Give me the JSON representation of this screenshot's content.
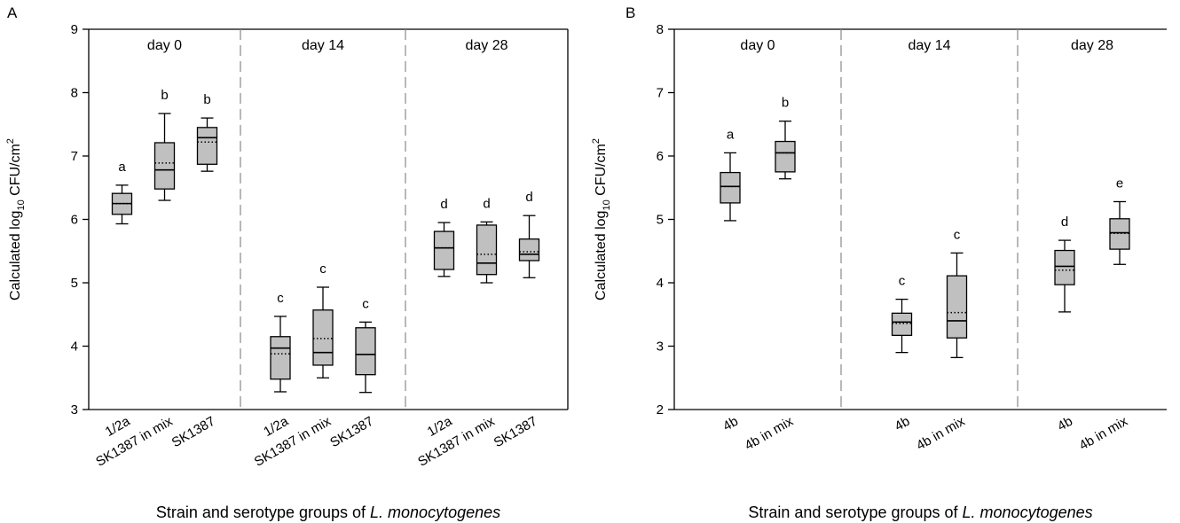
{
  "chart_data": [
    {
      "type": "box",
      "label": "A",
      "ylabel": [
        "Calculated log",
        "10",
        " CFU/cm",
        "2"
      ],
      "xlabel": [
        "Strain and serotype groups of ",
        "L. monocytogenes"
      ],
      "ylim": [
        3,
        9
      ],
      "yticks": [
        3,
        4,
        5,
        6,
        7,
        8,
        9
      ],
      "color": "#c0c0c0",
      "groups": [
        {
          "name": "day 0",
          "categories": [
            "1/2a",
            "SK1387 in mix",
            "SK1387"
          ],
          "letters": [
            "a",
            "b",
            "b"
          ],
          "boxes": [
            {
              "min": 5.93,
              "q1": 6.08,
              "median": 6.25,
              "q3": 6.41,
              "max": 6.54,
              "mean": 6.25
            },
            {
              "min": 6.3,
              "q1": 6.48,
              "median": 6.78,
              "q3": 7.21,
              "max": 7.67,
              "mean": 6.89
            },
            {
              "min": 6.76,
              "q1": 6.87,
              "median": 7.29,
              "q3": 7.45,
              "max": 7.6,
              "mean": 7.22
            }
          ]
        },
        {
          "name": "day 14",
          "categories": [
            "1/2a",
            "SK1387 in mix",
            "SK1387"
          ],
          "letters": [
            "c",
            "c",
            "c"
          ],
          "boxes": [
            {
              "min": 3.28,
              "q1": 3.48,
              "median": 3.97,
              "q3": 4.15,
              "max": 4.47,
              "mean": 3.88
            },
            {
              "min": 3.5,
              "q1": 3.7,
              "median": 3.9,
              "q3": 4.57,
              "max": 4.93,
              "mean": 4.12
            },
            {
              "min": 3.27,
              "q1": 3.55,
              "median": 3.87,
              "q3": 4.29,
              "max": 4.38,
              "mean": 3.87
            }
          ]
        },
        {
          "name": "day 28",
          "categories": [
            "1/2a",
            "SK1387 in mix",
            "SK1387"
          ],
          "letters": [
            "d",
            "d",
            "d"
          ],
          "boxes": [
            {
              "min": 5.1,
              "q1": 5.21,
              "median": 5.55,
              "q3": 5.81,
              "max": 5.95,
              "mean": 5.55
            },
            {
              "min": 5.0,
              "q1": 5.13,
              "median": 5.31,
              "q3": 5.91,
              "max": 5.96,
              "mean": 5.45
            },
            {
              "min": 5.08,
              "q1": 5.35,
              "median": 5.45,
              "q3": 5.69,
              "max": 6.06,
              "mean": 5.49
            }
          ]
        }
      ]
    },
    {
      "type": "box",
      "label": "B",
      "ylabel": [
        "Calculated log",
        "10",
        " CFU/cm",
        "2"
      ],
      "xlabel": [
        "Strain and serotype groups of ",
        "L. monocytogenes"
      ],
      "ylim": [
        2,
        8
      ],
      "yticks": [
        2,
        3,
        4,
        5,
        6,
        7,
        8
      ],
      "color": "#c0c0c0",
      "groups": [
        {
          "name": "day 0",
          "categories": [
            "4b",
            "4b in mix"
          ],
          "letters": [
            "a",
            "b"
          ],
          "boxes": [
            {
              "min": 4.98,
              "q1": 5.26,
              "median": 5.52,
              "q3": 5.74,
              "max": 6.05,
              "mean": 5.52
            },
            {
              "min": 5.64,
              "q1": 5.75,
              "median": 6.05,
              "q3": 6.23,
              "max": 6.55,
              "mean": 6.05
            }
          ]
        },
        {
          "name": "day 14",
          "categories": [
            "4b",
            "4b in mix"
          ],
          "letters": [
            "c",
            "c"
          ],
          "boxes": [
            {
              "min": 2.9,
              "q1": 3.17,
              "median": 3.38,
              "q3": 3.52,
              "max": 3.74,
              "mean": 3.36
            },
            {
              "min": 2.82,
              "q1": 3.13,
              "median": 3.4,
              "q3": 4.11,
              "max": 4.47,
              "mean": 3.53
            }
          ]
        },
        {
          "name": "day 28",
          "categories": [
            "4b",
            "4b in mix"
          ],
          "letters": [
            "d",
            "e"
          ],
          "boxes": [
            {
              "min": 3.54,
              "q1": 3.97,
              "median": 4.26,
              "q3": 4.51,
              "max": 4.67,
              "mean": 4.2
            },
            {
              "min": 4.29,
              "q1": 4.53,
              "median": 4.79,
              "q3": 5.01,
              "max": 5.28,
              "mean": 4.78
            }
          ]
        }
      ]
    }
  ]
}
